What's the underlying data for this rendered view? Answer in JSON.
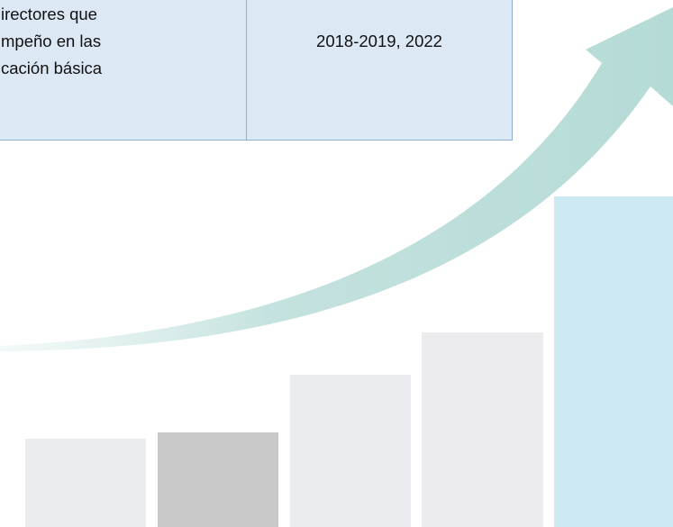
{
  "table": {
    "rows": [
      [
        [
          "irectores que",
          "mpeño en las",
          "cación básica"
        ],
        "2018-2019, 2022"
      ]
    ]
  }
}
